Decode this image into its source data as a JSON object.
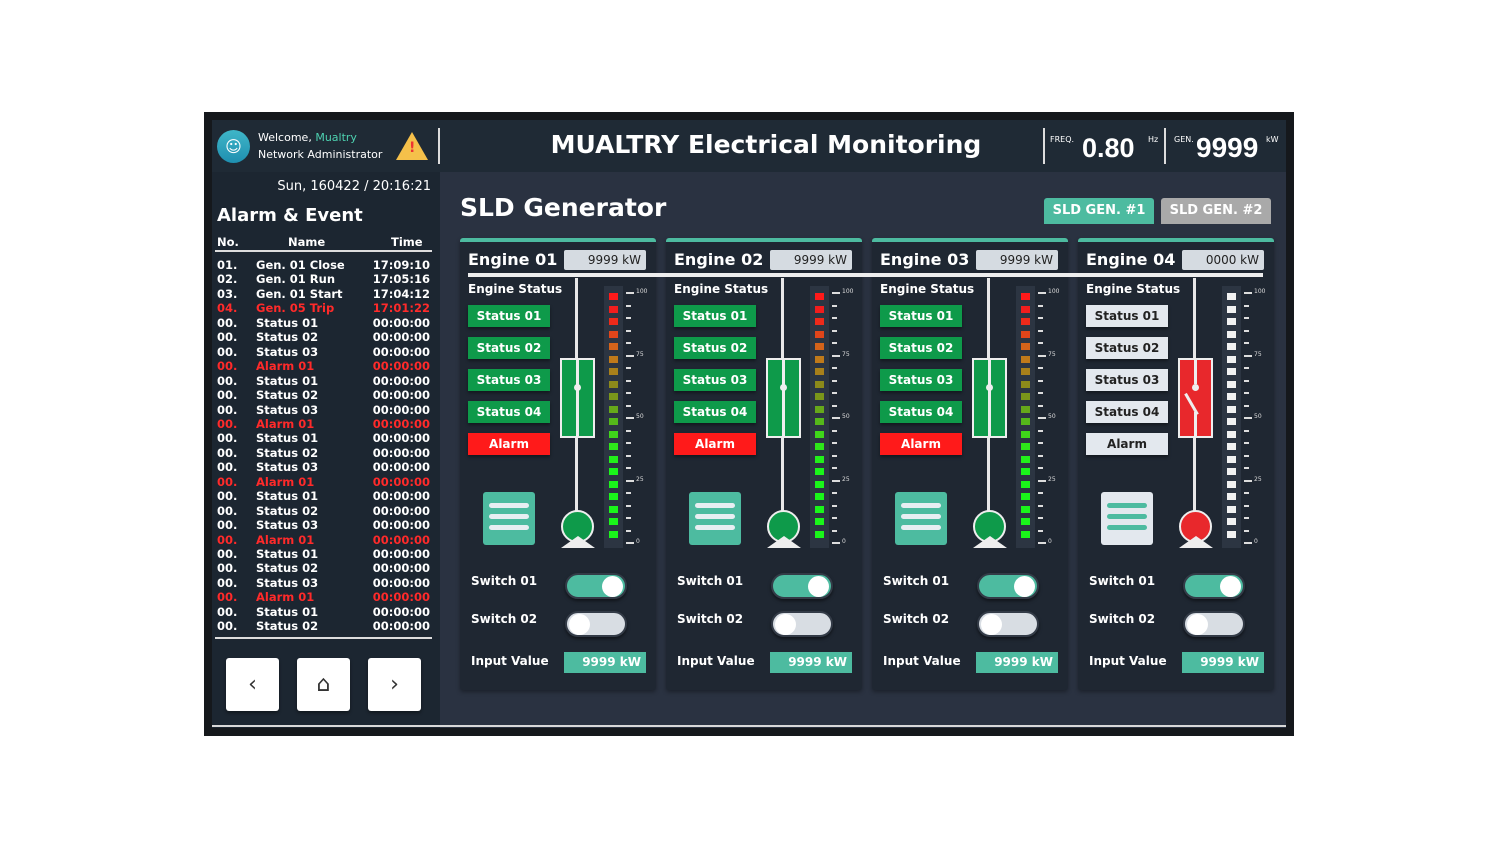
{
  "header": {
    "welcome": "Welcome,",
    "user": "Mualtry",
    "role": "Network Administrator",
    "title": "MUALTRY Electrical Monitoring",
    "freq_label": "FREQ.",
    "freq_value": "0.80",
    "freq_unit": "Hz",
    "gen_label": "GEN.",
    "gen_value": "9999",
    "gen_unit": "kW"
  },
  "sidebar": {
    "datetime": "Sun, 160422 / 20:16:21",
    "title": "Alarm & Event",
    "columns": [
      "No.",
      "Name",
      "Time"
    ],
    "rows": [
      {
        "no": "01.",
        "name": "Gen. 01 Close",
        "time": "17:09:10",
        "alarm": false
      },
      {
        "no": "02.",
        "name": "Gen. 01 Run",
        "time": "17:05:16",
        "alarm": false
      },
      {
        "no": "03.",
        "name": "Gen. 01 Start",
        "time": "17:04:12",
        "alarm": false
      },
      {
        "no": "04.",
        "name": "Gen. 05 Trip",
        "time": "17:01:22",
        "alarm": true
      },
      {
        "no": "00.",
        "name": "Status 01",
        "time": "00:00:00",
        "alarm": false
      },
      {
        "no": "00.",
        "name": "Status 02",
        "time": "00:00:00",
        "alarm": false
      },
      {
        "no": "00.",
        "name": "Status 03",
        "time": "00:00:00",
        "alarm": false
      },
      {
        "no": "00.",
        "name": "Alarm 01",
        "time": "00:00:00",
        "alarm": true
      },
      {
        "no": "00.",
        "name": "Status 01",
        "time": "00:00:00",
        "alarm": false
      },
      {
        "no": "00.",
        "name": "Status 02",
        "time": "00:00:00",
        "alarm": false
      },
      {
        "no": "00.",
        "name": "Status 03",
        "time": "00:00:00",
        "alarm": false
      },
      {
        "no": "00.",
        "name": "Alarm 01",
        "time": "00:00:00",
        "alarm": true
      },
      {
        "no": "00.",
        "name": "Status 01",
        "time": "00:00:00",
        "alarm": false
      },
      {
        "no": "00.",
        "name": "Status 02",
        "time": "00:00:00",
        "alarm": false
      },
      {
        "no": "00.",
        "name": "Status 03",
        "time": "00:00:00",
        "alarm": false
      },
      {
        "no": "00.",
        "name": "Alarm 01",
        "time": "00:00:00",
        "alarm": true
      },
      {
        "no": "00.",
        "name": "Status 01",
        "time": "00:00:00",
        "alarm": false
      },
      {
        "no": "00.",
        "name": "Status 02",
        "time": "00:00:00",
        "alarm": false
      },
      {
        "no": "00.",
        "name": "Status 03",
        "time": "00:00:00",
        "alarm": false
      },
      {
        "no": "00.",
        "name": "Alarm 01",
        "time": "00:00:00",
        "alarm": true
      },
      {
        "no": "00.",
        "name": "Status 01",
        "time": "00:00:00",
        "alarm": false
      },
      {
        "no": "00.",
        "name": "Status 02",
        "time": "00:00:00",
        "alarm": false
      },
      {
        "no": "00.",
        "name": "Status 03",
        "time": "00:00:00",
        "alarm": false
      },
      {
        "no": "00.",
        "name": "Alarm 01",
        "time": "00:00:00",
        "alarm": true
      },
      {
        "no": "00.",
        "name": "Status 01",
        "time": "00:00:00",
        "alarm": false
      },
      {
        "no": "00.",
        "name": "Status 02",
        "time": "00:00:00",
        "alarm": false
      }
    ],
    "nav": {
      "prev": "‹",
      "home": "⌂",
      "next": "›"
    }
  },
  "main": {
    "title": "SLD Generator",
    "tabs": [
      {
        "label": "SLD GEN. #1",
        "active": true
      },
      {
        "label": "SLD GEN. #2",
        "active": false
      }
    ],
    "meter_ticks": [
      "100",
      "75",
      "50",
      "25",
      "0"
    ],
    "engines": [
      {
        "name": "Engine 01",
        "power": "9999 kW",
        "status_title": "Engine Status",
        "statuses": [
          "Status 01",
          "Status 02",
          "Status 03",
          "Status 04"
        ],
        "alarm_label": "Alarm",
        "active": true,
        "breaker": "closed",
        "meter_level_percent": 100,
        "switch1_label": "Switch 01",
        "switch1_on": true,
        "switch2_label": "Switch 02",
        "switch2_on": false,
        "input_label": "Input Value",
        "input_value": "9999 kW"
      },
      {
        "name": "Engine 02",
        "power": "9999 kW",
        "status_title": "Engine Status",
        "statuses": [
          "Status 01",
          "Status 02",
          "Status 03",
          "Status 04"
        ],
        "alarm_label": "Alarm",
        "active": true,
        "breaker": "closed",
        "meter_level_percent": 100,
        "switch1_label": "Switch 01",
        "switch1_on": true,
        "switch2_label": "Switch 02",
        "switch2_on": false,
        "input_label": "Input Value",
        "input_value": "9999 kW"
      },
      {
        "name": "Engine 03",
        "power": "9999 kW",
        "status_title": "Engine Status",
        "statuses": [
          "Status 01",
          "Status 02",
          "Status 03",
          "Status 04"
        ],
        "alarm_label": "Alarm",
        "active": true,
        "breaker": "closed",
        "meter_level_percent": 100,
        "switch1_label": "Switch 01",
        "switch1_on": true,
        "switch2_label": "Switch 02",
        "switch2_on": false,
        "input_label": "Input Value",
        "input_value": "9999 kW"
      },
      {
        "name": "Engine 04",
        "power": "0000 kW",
        "status_title": "Engine Status",
        "statuses": [
          "Status 01",
          "Status 02",
          "Status 03",
          "Status 04"
        ],
        "alarm_label": "Alarm",
        "active": false,
        "breaker": "open",
        "meter_level_percent": 0,
        "switch1_label": "Switch 01",
        "switch1_on": true,
        "switch2_label": "Switch 02",
        "switch2_on": false,
        "input_label": "Input Value",
        "input_value": "9999 kW"
      }
    ]
  },
  "colors": {
    "accent": "#4dbba0",
    "active_green": "#0e9a4a",
    "alarm_red": "#ff1a1a",
    "breaker_open": "#e8282c",
    "inactive": "#e3e8ee",
    "header_bg": "#1f2a35",
    "main_bg": "#2a3241"
  }
}
